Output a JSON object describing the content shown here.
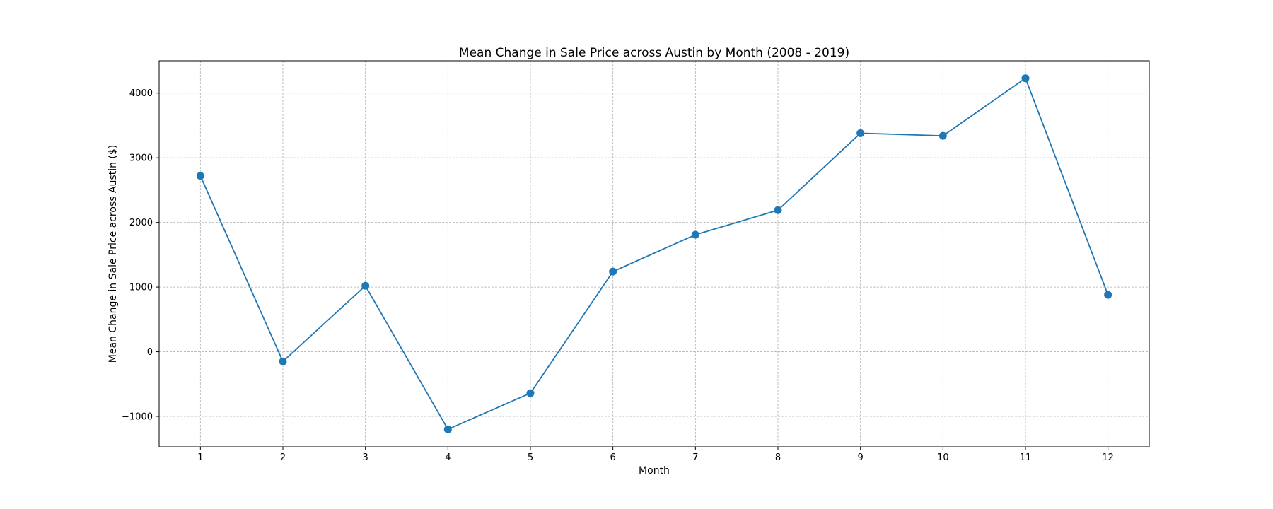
{
  "chart_data": {
    "type": "line",
    "title": "Mean Change in Sale Price across Austin by Month (2008 - 2019)",
    "xlabel": "Month",
    "ylabel": "Mean Change in Sale Price across Austin ($)",
    "x": [
      1,
      2,
      3,
      4,
      5,
      6,
      7,
      8,
      9,
      10,
      11,
      12
    ],
    "x_tick_labels": [
      "1",
      "2",
      "3",
      "4",
      "5",
      "6",
      "7",
      "8",
      "9",
      "10",
      "11",
      "12"
    ],
    "xlim": [
      0.5,
      12.5
    ],
    "y_ticks": [
      -1000,
      0,
      1000,
      2000,
      3000,
      4000
    ],
    "y_tick_labels": [
      "−1000",
      "0",
      "1000",
      "2000",
      "3000",
      "4000"
    ],
    "ylim": [
      -1470,
      4500
    ],
    "grid": true,
    "legend": "none",
    "series": [
      {
        "color": "#1f77b4",
        "marker": "circle",
        "values": [
          2720,
          -150,
          1020,
          -1200,
          -640,
          1240,
          1810,
          2190,
          3380,
          3340,
          4230,
          880
        ]
      }
    ]
  }
}
